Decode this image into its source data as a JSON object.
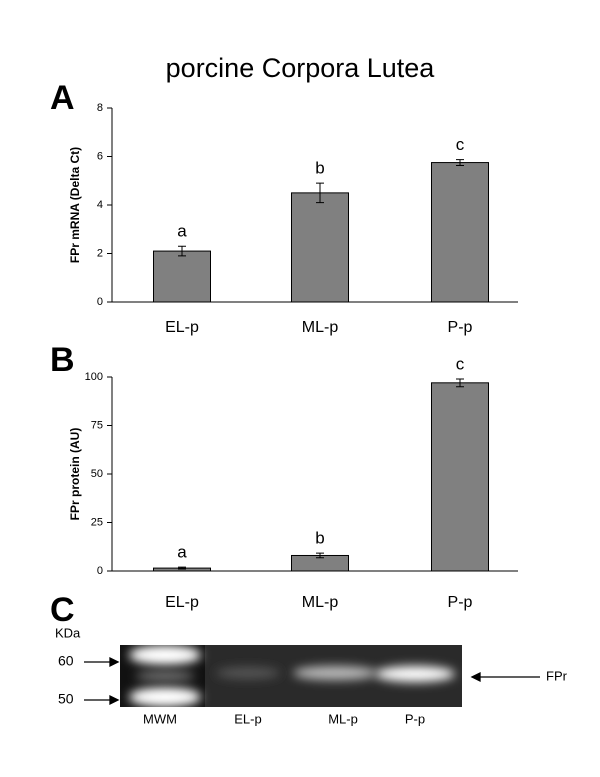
{
  "title": "porcine Corpora Lutea",
  "chart_data": [
    {
      "type": "bar",
      "panel": "A",
      "ylabel": "FPr mRNA (Delta Ct)",
      "categories": [
        "EL-p",
        "ML-p",
        "P-p"
      ],
      "values": [
        2.1,
        4.5,
        5.75
      ],
      "errors": [
        0.2,
        0.4,
        0.12
      ],
      "annotations": [
        "a",
        "b",
        "c"
      ],
      "color": "#808080",
      "ylim": [
        0,
        8
      ],
      "yticks": [
        0,
        2,
        4,
        6,
        8
      ],
      "grid": false
    },
    {
      "type": "bar",
      "panel": "B",
      "ylabel": "FPr protein (AU)",
      "categories": [
        "EL-p",
        "ML-p",
        "P-p"
      ],
      "values": [
        1.5,
        8,
        97
      ],
      "errors": [
        0.5,
        1.2,
        2
      ],
      "annotations": [
        "a",
        "b",
        "c"
      ],
      "color": "#808080",
      "ylim": [
        0,
        100
      ],
      "yticks": [
        0,
        25,
        50,
        75,
        100
      ],
      "grid": false
    }
  ],
  "blot": {
    "panel": "C",
    "unit": "KDa",
    "markers": [
      "60",
      "50"
    ],
    "band": "FPr",
    "lanes": [
      "MWM",
      "EL-p",
      "ML-p",
      "P-p"
    ]
  }
}
